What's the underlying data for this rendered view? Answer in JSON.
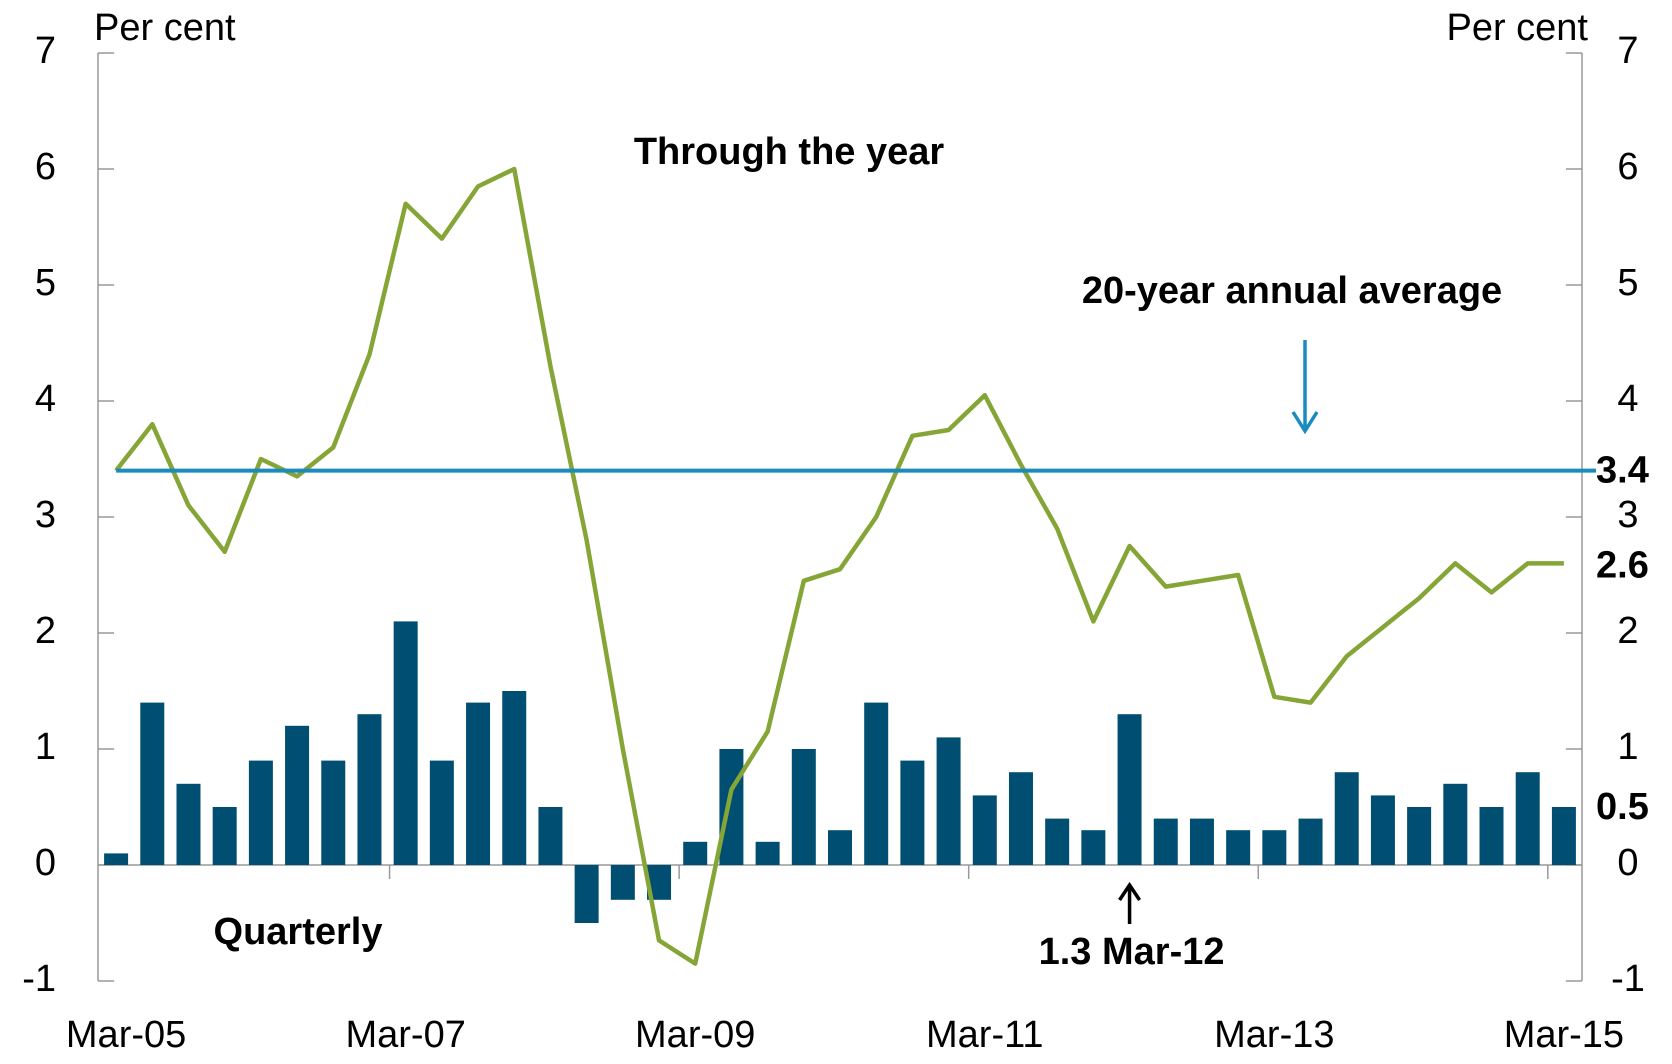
{
  "chart_data": {
    "type": "bar_line",
    "y_axis_label": "Per cent",
    "y2_axis_label": "Per cent",
    "categories": [
      "Mar-05",
      null,
      null,
      null,
      null,
      null,
      null,
      null,
      "Mar-07",
      null,
      null,
      null,
      null,
      null,
      null,
      null,
      "Mar-09",
      null,
      null,
      null,
      null,
      null,
      null,
      null,
      "Mar-11",
      null,
      null,
      null,
      null,
      null,
      null,
      null,
      "Mar-13",
      null,
      null,
      null,
      null,
      null,
      null,
      null,
      "Mar-15"
    ],
    "series": [
      {
        "name": "Quarterly",
        "kind": "bar",
        "color": "#004f72",
        "end_label": "0.5",
        "values": [
          0.1,
          1.4,
          0.7,
          0.5,
          0.9,
          1.2,
          0.9,
          1.3,
          2.1,
          0.9,
          1.4,
          1.5,
          0.5,
          -0.5,
          -0.3,
          -0.3,
          0.2,
          1.0,
          0.2,
          1.0,
          0.3,
          1.4,
          0.9,
          1.1,
          0.6,
          0.8,
          0.4,
          0.3,
          1.3,
          0.4,
          0.4,
          0.3,
          0.3,
          0.4,
          0.8,
          0.6,
          0.5,
          0.7,
          0.5,
          0.8,
          0.5
        ]
      },
      {
        "name": "Through the year",
        "kind": "line",
        "color": "#86a537",
        "end_label": "2.6",
        "values": [
          3.4,
          3.8,
          3.1,
          2.7,
          3.5,
          3.35,
          3.6,
          4.4,
          5.7,
          5.4,
          5.85,
          6.0,
          4.3,
          2.8,
          1.0,
          -0.65,
          -0.85,
          0.65,
          1.15,
          2.45,
          2.55,
          3.0,
          3.7,
          3.75,
          4.05,
          3.45,
          2.9,
          2.1,
          2.75,
          2.4,
          2.45,
          2.5,
          1.45,
          1.4,
          1.8,
          2.05,
          2.3,
          2.6,
          2.35,
          2.6,
          2.6
        ]
      }
    ],
    "average": {
      "name": "20-year annual average",
      "color": "#1a8bbd",
      "value": 3.4,
      "label": "3.4"
    },
    "annotation": {
      "text": "1.3 Mar-12",
      "category_index": 28
    },
    "ylim": [
      -1,
      7
    ],
    "yticks": [
      -1,
      0,
      1,
      2,
      3,
      4,
      5,
      6,
      7
    ],
    "y2lim": [
      -1,
      7
    ],
    "y2ticks": [
      -1,
      0,
      1,
      2,
      3,
      4,
      5,
      6,
      7
    ]
  }
}
